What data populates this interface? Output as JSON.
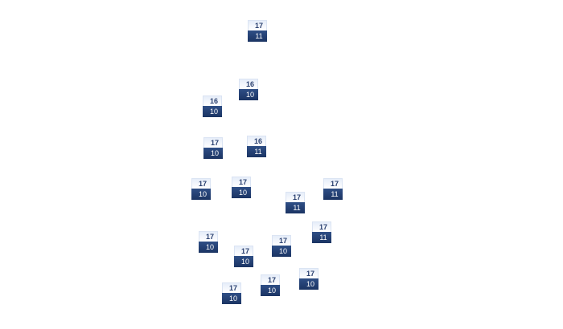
{
  "markers": [
    {
      "top": "17",
      "bottom": "11"
    },
    {
      "top": "16",
      "bottom": "10"
    },
    {
      "top": "16",
      "bottom": "10"
    },
    {
      "top": "17",
      "bottom": "10"
    },
    {
      "top": "16",
      "bottom": "11"
    },
    {
      "top": "17",
      "bottom": "10"
    },
    {
      "top": "17",
      "bottom": "10"
    },
    {
      "top": "17",
      "bottom": "11"
    },
    {
      "top": "17",
      "bottom": "11"
    },
    {
      "top": "17",
      "bottom": "10"
    },
    {
      "top": "17",
      "bottom": "11"
    },
    {
      "top": "17",
      "bottom": "10"
    },
    {
      "top": "17",
      "bottom": "10"
    },
    {
      "top": "17",
      "bottom": "10"
    },
    {
      "top": "17",
      "bottom": "10"
    },
    {
      "top": "17",
      "bottom": "10"
    }
  ],
  "colors": {
    "label_top_bg": "#eef2fb",
    "label_top_text": "#2b4170",
    "label_bottom_bg": "#23406f",
    "label_bottom_text": "#ffffff"
  }
}
